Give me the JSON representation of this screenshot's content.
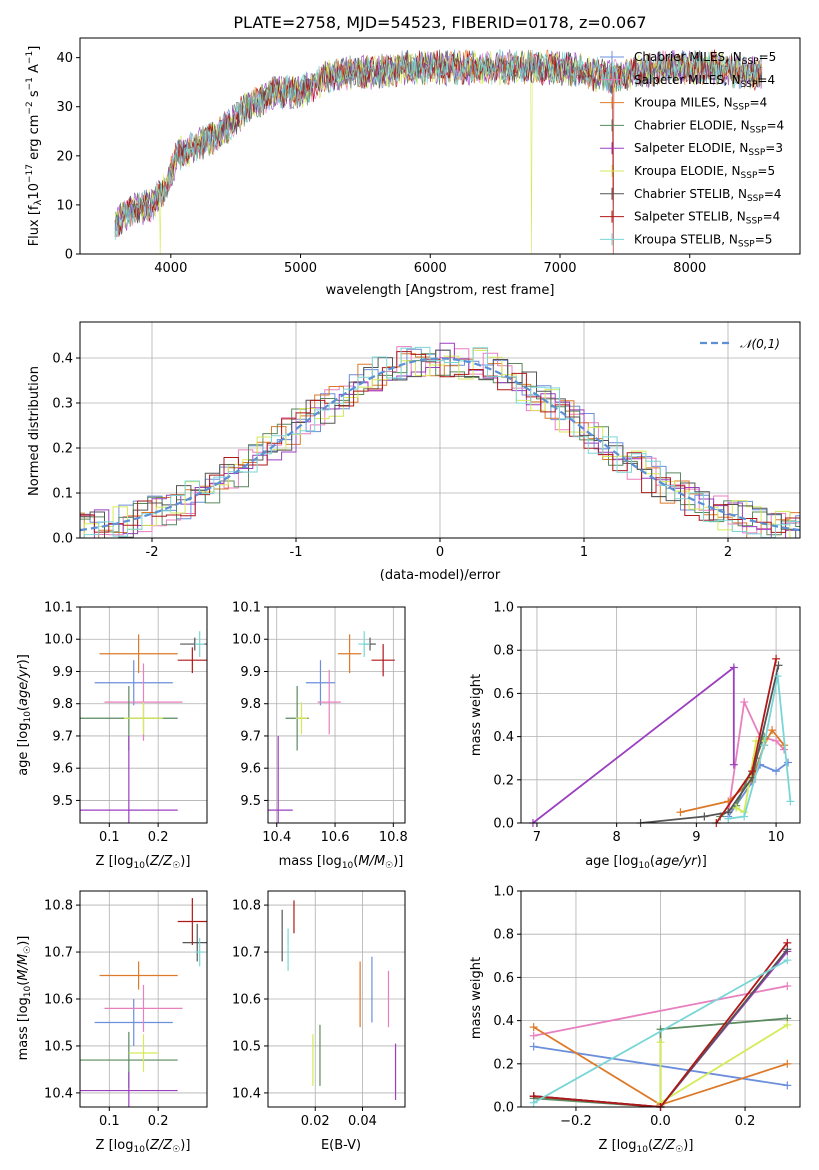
{
  "colors": {
    "chabrier_miles": "#6b8fdc",
    "salpeter_miles": "#e87fbf",
    "kroupa_miles": "#dd7a2a",
    "chabrier_elodie": "#5a8a5e",
    "salpeter_elodie": "#9b3fc0",
    "kroupa_elodie": "#d6ea58",
    "chabrier_stelib": "#555555",
    "salpeter_stelib": "#b01818",
    "kroupa_stelib": "#7ad6d6",
    "gaussian": "#5b8fd6",
    "grid": "#b0b0b0"
  },
  "chart_data": [
    {
      "id": "spectrum",
      "type": "line",
      "title": "PLATE=2758, MJD=54523, FIBERID=0178, z=0.067",
      "xlabel": "wavelength [Angstrom, rest frame]",
      "ylabel": "Flux [f_λ 10^-17 erg cm^-2 s^-1 A^-1]",
      "xlim": [
        3300,
        8850
      ],
      "ylim": [
        0,
        44
      ],
      "xticks": [
        4000,
        5000,
        6000,
        7000,
        8000
      ],
      "yticks": [
        0,
        10,
        20,
        30,
        40
      ],
      "legend_position": "right",
      "series": [
        {
          "name": "Chabrier MILES, N_SSP=5",
          "color_key": "chabrier_miles"
        },
        {
          "name": "Salpeter MILES, N_SSP=4",
          "color_key": "salpeter_miles"
        },
        {
          "name": "Kroupa MILES, N_SSP=4",
          "color_key": "kroupa_miles"
        },
        {
          "name": "Chabrier ELODIE, N_SSP=4",
          "color_key": "chabrier_elodie"
        },
        {
          "name": "Salpeter ELODIE, N_SSP=3",
          "color_key": "salpeter_elodie"
        },
        {
          "name": "Kroupa ELODIE, N_SSP=5",
          "color_key": "kroupa_elodie"
        },
        {
          "name": "Chabrier STELIB, N_SSP=4",
          "color_key": "chabrier_stelib"
        },
        {
          "name": "Salpeter STELIB, N_SSP=4",
          "color_key": "salpeter_stelib"
        },
        {
          "name": "Kroupa STELIB, N_SSP=5",
          "color_key": "kroupa_stelib"
        }
      ],
      "continuum": {
        "x": [
          3570,
          3700,
          3850,
          3950,
          4050,
          4200,
          4400,
          4600,
          4800,
          5000,
          5200,
          5400,
          5600,
          5800,
          6000,
          6200,
          6400,
          6600,
          6800,
          7000,
          7200,
          7400,
          7600,
          7800,
          8000,
          8200,
          8400,
          8560
        ],
        "y": [
          6,
          9,
          10,
          13,
          20,
          22,
          25,
          30,
          33,
          33,
          36,
          37,
          37,
          38,
          38,
          38,
          38,
          38,
          38,
          38,
          37,
          36,
          37,
          38,
          38,
          38,
          37,
          37
        ]
      },
      "dips": [
        {
          "x": 3920,
          "series": "kroupa_elodie",
          "y": 0
        },
        {
          "x": 6780,
          "series": "kroupa_elodie",
          "y": 0
        },
        {
          "x": 7410,
          "series": "salpeter_stelib",
          "y": 0
        },
        {
          "x": 5890,
          "series": "kroupa_stelib",
          "y": 35
        }
      ]
    },
    {
      "id": "residuals",
      "type": "histogram",
      "xlabel": "(data-model)/error",
      "ylabel": "Normed distribution",
      "xlim": [
        -2.5,
        2.5
      ],
      "ylim": [
        0,
        0.48
      ],
      "xticks": [
        -2,
        -1,
        0,
        1,
        2
      ],
      "yticks": [
        0.0,
        0.1,
        0.2,
        0.3,
        0.4
      ],
      "legend": [
        {
          "name": "𝒩(0,1)",
          "style": "dashed",
          "color_key": "gaussian"
        }
      ],
      "legend_position": "top-right",
      "bin_width": 0.1
    },
    {
      "id": "z_age",
      "type": "errorbar",
      "xlabel": "Z [log10(Z/Z☉)]",
      "ylabel": "age  [log10(age/yr)]",
      "xlim": [
        0.04,
        0.3
      ],
      "ylim": [
        9.43,
        10.1
      ],
      "xticks": [
        0.1,
        0.2
      ],
      "yticks": [
        9.5,
        9.6,
        9.7,
        9.8,
        9.9,
        10.0,
        10.1
      ],
      "points": [
        {
          "s": "chabrier_miles",
          "x": 0.15,
          "xerr": 0.08,
          "y": 9.865,
          "yerr": 0.07
        },
        {
          "s": "salpeter_miles",
          "x": 0.17,
          "xerr": 0.08,
          "y": 9.805,
          "yerr": 0.12
        },
        {
          "s": "kroupa_miles",
          "x": 0.16,
          "xerr": 0.08,
          "y": 9.955,
          "yerr": 0.06
        },
        {
          "s": "chabrier_elodie",
          "x": 0.14,
          "xerr": 0.1,
          "y": 9.755,
          "yerr": 0.1
        },
        {
          "s": "salpeter_elodie",
          "x": 0.14,
          "xerr": 0.1,
          "y": 9.47,
          "yerr": 0.23
        },
        {
          "s": "kroupa_elodie",
          "x": 0.17,
          "xerr": 0.04,
          "y": 9.755,
          "yerr": 0.05
        },
        {
          "s": "chabrier_stelib",
          "x": 0.275,
          "xerr": 0.03,
          "y": 9.985,
          "yerr": 0.02
        },
        {
          "s": "salpeter_stelib",
          "x": 0.27,
          "xerr": 0.03,
          "y": 9.935,
          "yerr": 0.04
        },
        {
          "s": "kroupa_stelib",
          "x": 0.285,
          "xerr": 0.01,
          "y": 9.985,
          "yerr": 0.04
        }
      ]
    },
    {
      "id": "mass_age",
      "type": "errorbar",
      "xlabel": "mass [log10(M/M☉)]",
      "xlim": [
        10.37,
        10.84
      ],
      "ylim": [
        9.43,
        10.1
      ],
      "xticks": [
        10.4,
        10.6,
        10.8
      ],
      "yticks": [
        9.5,
        9.6,
        9.7,
        9.8,
        9.9,
        10.0,
        10.1
      ],
      "points": [
        {
          "s": "chabrier_miles",
          "x": 10.55,
          "xerr": 0.05,
          "y": 9.865,
          "yerr": 0.07
        },
        {
          "s": "salpeter_miles",
          "x": 10.58,
          "xerr": 0.04,
          "y": 9.805,
          "yerr": 0.1
        },
        {
          "s": "kroupa_miles",
          "x": 10.65,
          "xerr": 0.04,
          "y": 9.955,
          "yerr": 0.06
        },
        {
          "s": "chabrier_elodie",
          "x": 10.47,
          "xerr": 0.04,
          "y": 9.755,
          "yerr": 0.1
        },
        {
          "s": "salpeter_elodie",
          "x": 10.405,
          "xerr": 0.05,
          "y": 9.47,
          "yerr": 0.23
        },
        {
          "s": "kroupa_elodie",
          "x": 10.485,
          "xerr": 0.02,
          "y": 9.755,
          "yerr": 0.05
        },
        {
          "s": "chabrier_stelib",
          "x": 10.72,
          "xerr": 0.02,
          "y": 9.985,
          "yerr": 0.02
        },
        {
          "s": "salpeter_stelib",
          "x": 10.765,
          "xerr": 0.04,
          "y": 9.935,
          "yerr": 0.05
        },
        {
          "s": "kroupa_stelib",
          "x": 10.7,
          "xerr": 0.02,
          "y": 9.985,
          "yerr": 0.04
        }
      ]
    },
    {
      "id": "age_weight",
      "type": "line",
      "xlabel": "age  [log10(age/yr)]",
      "ylabel": "mass weight",
      "xlim": [
        6.8,
        10.3
      ],
      "ylim": [
        0,
        1.0
      ],
      "xticks": [
        7,
        8,
        9,
        10
      ],
      "yticks": [
        0.0,
        0.2,
        0.4,
        0.6,
        0.8,
        1.0
      ],
      "grid": true,
      "series": [
        {
          "s": "chabrier_miles",
          "x": [
            9.4,
            9.7,
            9.8,
            10.0,
            10.15
          ],
          "y": [
            0.03,
            0.19,
            0.27,
            0.24,
            0.28
          ]
        },
        {
          "s": "salpeter_miles",
          "x": [
            9.4,
            9.6,
            9.8,
            10.0,
            10.1
          ],
          "y": [
            0.05,
            0.56,
            0.4,
            0.38,
            0.34
          ]
        },
        {
          "s": "kroupa_miles",
          "x": [
            8.8,
            9.4,
            9.7,
            9.85,
            9.95,
            10.1
          ],
          "y": [
            0.05,
            0.1,
            0.2,
            0.36,
            0.43,
            0.36
          ]
        },
        {
          "s": "chabrier_elodie",
          "x": [
            9.3,
            9.5,
            9.75,
            9.85
          ],
          "y": [
            0.03,
            0.08,
            0.3,
            0.4
          ]
        },
        {
          "s": "salpeter_elodie",
          "x": [
            6.95,
            9.47,
            9.47
          ],
          "y": [
            0.0,
            0.72,
            0.27
          ]
        },
        {
          "s": "kroupa_elodie",
          "x": [
            9.5,
            9.6,
            9.75,
            9.85
          ],
          "y": [
            0.07,
            0.05,
            0.38,
            0.38
          ]
        },
        {
          "s": "chabrier_stelib",
          "x": [
            8.3,
            9.1,
            9.4,
            9.7,
            10.03
          ],
          "y": [
            0.0,
            0.03,
            0.05,
            0.21,
            0.73
          ]
        },
        {
          "s": "salpeter_stelib",
          "x": [
            9.25,
            9.7,
            10.0
          ],
          "y": [
            0.0,
            0.24,
            0.76
          ]
        },
        {
          "s": "kroupa_stelib",
          "x": [
            9.4,
            9.6,
            9.85,
            10.02,
            10.18
          ],
          "y": [
            0.02,
            0.03,
            0.36,
            0.68,
            0.1
          ]
        }
      ]
    },
    {
      "id": "z_mass",
      "type": "errorbar",
      "xlabel": "Z [log10(Z/Z☉)]",
      "ylabel": "mass [log10(M/M☉)]",
      "xlim": [
        0.04,
        0.3
      ],
      "ylim": [
        10.37,
        10.83
      ],
      "xticks": [
        0.1,
        0.2
      ],
      "yticks": [
        10.4,
        10.5,
        10.6,
        10.7,
        10.8
      ],
      "points": [
        {
          "s": "chabrier_miles",
          "x": 0.15,
          "xerr": 0.08,
          "y": 10.55,
          "yerr": 0.05
        },
        {
          "s": "salpeter_miles",
          "x": 0.17,
          "xerr": 0.08,
          "y": 10.58,
          "yerr": 0.05
        },
        {
          "s": "kroupa_miles",
          "x": 0.16,
          "xerr": 0.08,
          "y": 10.65,
          "yerr": 0.03
        },
        {
          "s": "chabrier_elodie",
          "x": 0.14,
          "xerr": 0.1,
          "y": 10.47,
          "yerr": 0.06
        },
        {
          "s": "salpeter_elodie",
          "x": 0.14,
          "xerr": 0.1,
          "y": 10.405,
          "yerr": 0.04
        },
        {
          "s": "kroupa_elodie",
          "x": 0.17,
          "xerr": 0.03,
          "y": 10.485,
          "yerr": 0.04
        },
        {
          "s": "chabrier_stelib",
          "x": 0.28,
          "xerr": 0.03,
          "y": 10.72,
          "yerr": 0.04
        },
        {
          "s": "salpeter_stelib",
          "x": 0.27,
          "xerr": 0.03,
          "y": 10.765,
          "yerr": 0.05
        },
        {
          "s": "kroupa_stelib",
          "x": 0.285,
          "xerr": 0.01,
          "y": 10.7,
          "yerr": 0.03
        }
      ]
    },
    {
      "id": "ebv_mass",
      "type": "errorbar",
      "xlabel": "E(B-V)",
      "xlim": [
        0.0,
        0.058
      ],
      "ylim": [
        10.37,
        10.83
      ],
      "xticks": [
        0.02,
        0.04
      ],
      "yticks": [
        10.4,
        10.5,
        10.6,
        10.7,
        10.8
      ],
      "points": [
        {
          "s": "chabrier_miles",
          "x": 0.044,
          "y": 10.62,
          "yerr": 0.07
        },
        {
          "s": "salpeter_miles",
          "x": 0.051,
          "y": 10.6,
          "yerr": 0.06
        },
        {
          "s": "kroupa_miles",
          "x": 0.039,
          "y": 10.61,
          "yerr": 0.07
        },
        {
          "s": "chabrier_elodie",
          "x": 0.022,
          "y": 10.48,
          "yerr": 0.065
        },
        {
          "s": "salpeter_elodie",
          "x": 0.054,
          "y": 10.445,
          "yerr": 0.06
        },
        {
          "s": "kroupa_elodie",
          "x": 0.019,
          "y": 10.47,
          "yerr": 0.055
        },
        {
          "s": "chabrier_stelib",
          "x": 0.006,
          "y": 10.735,
          "yerr": 0.055
        },
        {
          "s": "salpeter_stelib",
          "x": 0.011,
          "y": 10.775,
          "yerr": 0.035
        },
        {
          "s": "kroupa_stelib",
          "x": 0.0085,
          "y": 10.705,
          "yerr": 0.045
        }
      ]
    },
    {
      "id": "z_weight",
      "type": "line",
      "xlabel": "Z [log10(Z/Z☉)]",
      "ylabel": "mass weight",
      "xlim": [
        -0.33,
        0.33
      ],
      "ylim": [
        0,
        1.0
      ],
      "xticks": [
        -0.2,
        0.0,
        0.2
      ],
      "yticks": [
        0.0,
        0.2,
        0.4,
        0.6,
        0.8,
        1.0
      ],
      "grid": true,
      "series": [
        {
          "s": "chabrier_miles",
          "x": [
            -0.3,
            0.3
          ],
          "y": [
            0.28,
            0.1
          ]
        },
        {
          "s": "salpeter_miles",
          "x": [
            -0.3,
            0.3
          ],
          "y": [
            0.33,
            0.56
          ]
        },
        {
          "s": "kroupa_miles",
          "x": [
            -0.3,
            0.0,
            0.3
          ],
          "y": [
            0.37,
            0.01,
            0.2
          ]
        },
        {
          "s": "chabrier_elodie",
          "x": [
            -0.3,
            0.0,
            0.0,
            0.3
          ],
          "y": [
            0.04,
            0.0,
            0.36,
            0.41
          ]
        },
        {
          "s": "salpeter_elodie",
          "x": [
            -0.3,
            0.0,
            0.3
          ],
          "y": [
            0.05,
            0.0,
            0.72
          ]
        },
        {
          "s": "kroupa_elodie",
          "x": [
            0.0,
            0.0,
            0.3
          ],
          "y": [
            0.3,
            0.02,
            0.38
          ]
        },
        {
          "s": "chabrier_stelib",
          "x": [
            -0.3,
            0.0,
            0.3
          ],
          "y": [
            0.05,
            0.0,
            0.73
          ]
        },
        {
          "s": "salpeter_stelib",
          "x": [
            -0.3,
            0.0,
            0.3
          ],
          "y": [
            0.05,
            0.0,
            0.76
          ]
        },
        {
          "s": "kroupa_stelib",
          "x": [
            -0.3,
            0.3
          ],
          "y": [
            0.02,
            0.68
          ]
        }
      ]
    }
  ]
}
